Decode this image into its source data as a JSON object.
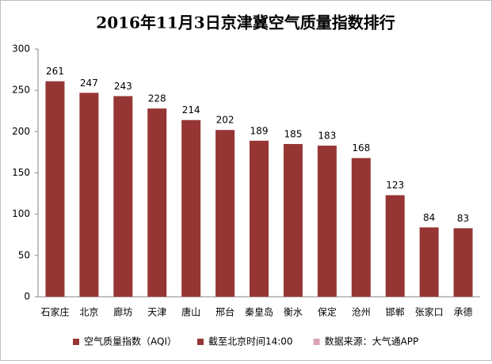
{
  "chart_data": {
    "type": "bar",
    "title": "2016年11月3日京津冀空气质量指数排行",
    "categories": [
      "石家庄",
      "北京",
      "廊坊",
      "天津",
      "唐山",
      "邢台",
      "秦皇岛",
      "衡水",
      "保定",
      "沧州",
      "邯郸",
      "张家口",
      "承德"
    ],
    "series": [
      {
        "name": "空气质量指数（AQI）",
        "color": "#963634",
        "values": [
          261,
          247,
          243,
          228,
          214,
          202,
          189,
          185,
          183,
          168,
          123,
          84,
          83
        ]
      }
    ],
    "legend_notes": [
      {
        "text": "截至北京时间14:00",
        "color": "#963634"
      },
      {
        "text": "数据来源：大气通APP",
        "color": "#d9a3b4"
      }
    ],
    "ylim": [
      0,
      300
    ],
    "yticks": [
      0,
      50,
      100,
      150,
      200,
      250,
      300
    ],
    "grid": false
  }
}
